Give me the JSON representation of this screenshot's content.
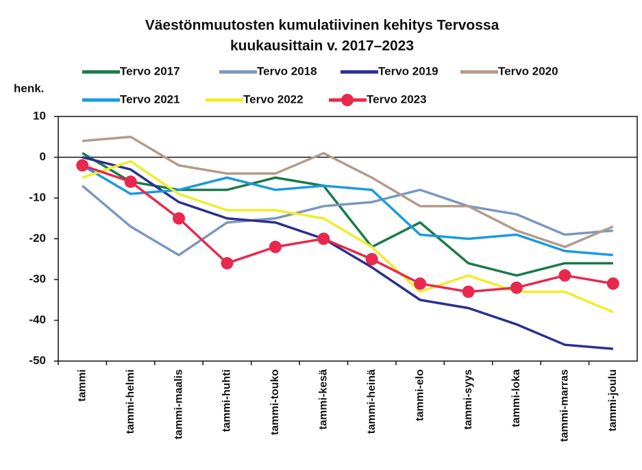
{
  "chart_data": {
    "type": "line",
    "title": "Väestönmuutosten kumulatiivinen kehitys Tervossa",
    "subtitle": "kuukausittain v. 2017–2023",
    "ylabel": "henk.",
    "categories": [
      "tammi",
      "tammi-helmi",
      "tammi-maalis",
      "tammi-huhti",
      "tammi-touko",
      "tammi-kesä",
      "tammi-heinä",
      "tammi-elo",
      "tammi-syys",
      "tammi-loka",
      "tammi-marras",
      "tammi-joulu"
    ],
    "series": [
      {
        "name": "Tervo 2017",
        "color": "#1a7a4a",
        "values": [
          1,
          -6,
          -8,
          -8,
          -5,
          -7,
          -22,
          -16,
          -26,
          -29,
          -26,
          -26
        ]
      },
      {
        "name": "Tervo 2018",
        "color": "#7a96c0",
        "values": [
          -7,
          -17,
          -24,
          -16,
          -15,
          -12,
          -11,
          -8,
          -12,
          -14,
          -19,
          -18
        ]
      },
      {
        "name": "Tervo 2019",
        "color": "#2b2f8f",
        "values": [
          0,
          -3,
          -11,
          -15,
          -16,
          -20,
          -27,
          -35,
          -37,
          -41,
          -46,
          -47
        ]
      },
      {
        "name": "Tervo 2020",
        "color": "#b49a8a",
        "values": [
          4,
          5,
          -2,
          -4,
          -4,
          1,
          -5,
          -12,
          -12,
          -18,
          -22,
          -17
        ]
      },
      {
        "name": "Tervo 2021",
        "color": "#1a9ae0",
        "values": [
          -2,
          -9,
          -8,
          -5,
          -8,
          -7,
          -8,
          -19,
          -20,
          -19,
          -23,
          -24
        ]
      },
      {
        "name": "Tervo 2022",
        "color": "#f2ec2a",
        "values": [
          -5,
          -1,
          -9,
          -13,
          -13,
          -15,
          -22,
          -33,
          -29,
          -33,
          -33,
          -38
        ]
      },
      {
        "name": "Tervo 2023",
        "color": "#e8294d",
        "values": [
          -2,
          -6,
          -15,
          -26,
          -22,
          -20,
          -25,
          -31,
          -33,
          -32,
          -29,
          -31
        ],
        "markers": true
      }
    ],
    "ylim": [
      -50,
      10
    ],
    "yticks": [
      -50,
      -40,
      -30,
      -20,
      -10,
      0,
      10
    ],
    "grid": false
  }
}
